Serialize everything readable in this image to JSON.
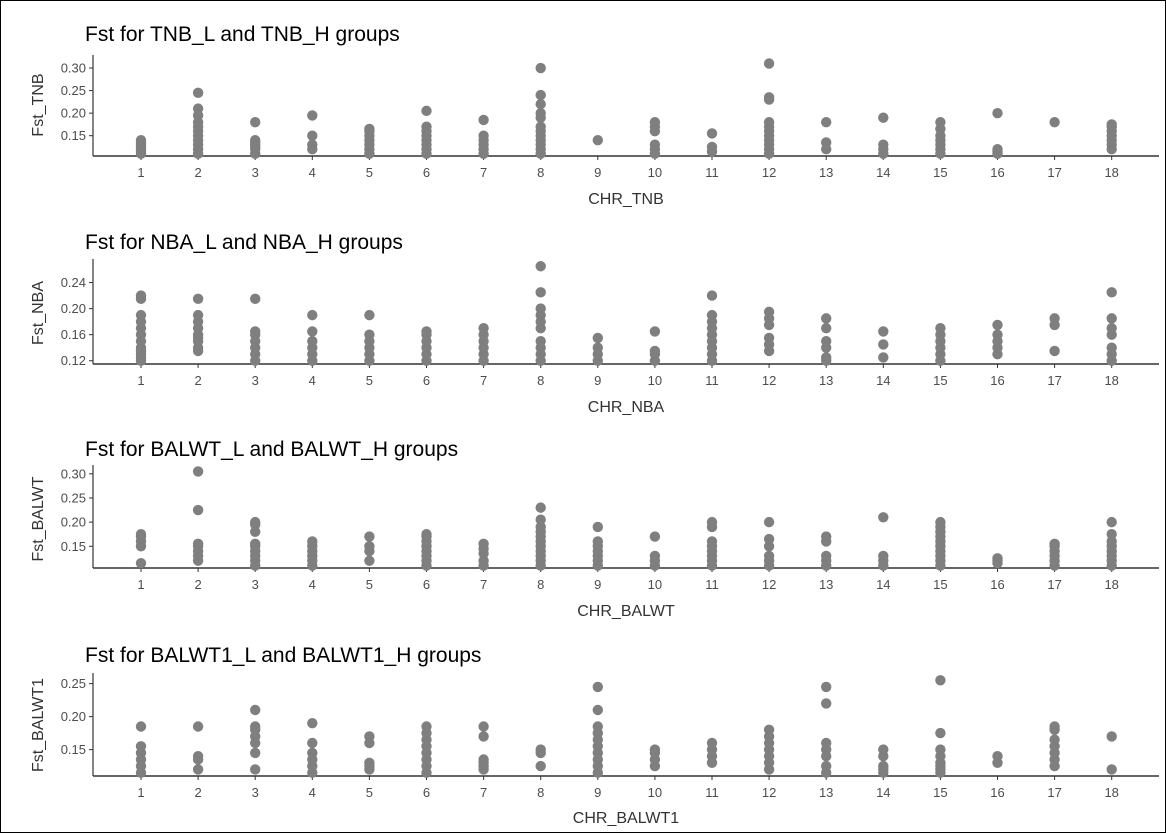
{
  "chart_data": [
    {
      "type": "scatter",
      "title": "Fst for TNB_L and TNB_H groups",
      "xlabel": "CHR_TNB",
      "ylabel": "Fst_TNB",
      "x_ticks": [
        "1",
        "2",
        "3",
        "4",
        "5",
        "6",
        "7",
        "8",
        "9",
        "10",
        "11",
        "12",
        "13",
        "14",
        "15",
        "16",
        "17",
        "18"
      ],
      "y_ticks": [
        "0.15",
        "0.20",
        "0.25",
        "0.30"
      ],
      "ylim": [
        0.105,
        0.32
      ],
      "grid": false,
      "point_color": "#7f7f7f",
      "points": [
        {
          "chr": 1,
          "values": [
            0.11,
            0.115,
            0.12,
            0.125,
            0.13,
            0.135,
            0.14
          ]
        },
        {
          "chr": 2,
          "values": [
            0.11,
            0.12,
            0.13,
            0.14,
            0.15,
            0.16,
            0.17,
            0.18,
            0.195,
            0.21,
            0.245
          ]
        },
        {
          "chr": 3,
          "values": [
            0.11,
            0.12,
            0.125,
            0.13,
            0.135,
            0.14,
            0.18
          ]
        },
        {
          "chr": 4,
          "values": [
            0.12,
            0.13,
            0.15,
            0.195
          ]
        },
        {
          "chr": 5,
          "values": [
            0.11,
            0.12,
            0.13,
            0.14,
            0.15,
            0.16,
            0.165
          ]
        },
        {
          "chr": 6,
          "values": [
            0.11,
            0.12,
            0.13,
            0.14,
            0.15,
            0.16,
            0.17,
            0.205
          ]
        },
        {
          "chr": 7,
          "values": [
            0.11,
            0.12,
            0.13,
            0.14,
            0.15,
            0.185
          ]
        },
        {
          "chr": 8,
          "values": [
            0.11,
            0.12,
            0.13,
            0.14,
            0.15,
            0.16,
            0.17,
            0.19,
            0.2,
            0.22,
            0.24,
            0.3
          ]
        },
        {
          "chr": 9,
          "values": [
            0.14
          ]
        },
        {
          "chr": 10,
          "values": [
            0.11,
            0.12,
            0.13,
            0.16,
            0.17,
            0.18
          ]
        },
        {
          "chr": 11,
          "values": [
            0.115,
            0.125,
            0.155
          ]
        },
        {
          "chr": 12,
          "values": [
            0.11,
            0.12,
            0.13,
            0.14,
            0.15,
            0.16,
            0.17,
            0.18,
            0.23,
            0.235,
            0.31
          ]
        },
        {
          "chr": 13,
          "values": [
            0.12,
            0.135,
            0.18
          ]
        },
        {
          "chr": 14,
          "values": [
            0.11,
            0.12,
            0.13,
            0.19
          ]
        },
        {
          "chr": 15,
          "values": [
            0.11,
            0.12,
            0.13,
            0.14,
            0.15,
            0.165,
            0.18
          ]
        },
        {
          "chr": 16,
          "values": [
            0.11,
            0.115,
            0.12,
            0.2
          ]
        },
        {
          "chr": 17,
          "values": [
            0.18
          ]
        },
        {
          "chr": 18,
          "values": [
            0.12,
            0.13,
            0.14,
            0.15,
            0.16,
            0.17,
            0.175
          ]
        }
      ]
    },
    {
      "type": "scatter",
      "title": "Fst for NBA_L and NBA_H groups",
      "xlabel": "CHR_NBA",
      "ylabel": "Fst_NBA",
      "x_ticks": [
        "1",
        "2",
        "3",
        "4",
        "5",
        "6",
        "7",
        "8",
        "9",
        "10",
        "11",
        "12",
        "13",
        "14",
        "15",
        "16",
        "17",
        "18"
      ],
      "y_ticks": [
        "0.12",
        "0.16",
        "0.20",
        "0.24"
      ],
      "ylim": [
        0.115,
        0.27
      ],
      "grid": false,
      "point_color": "#7f7f7f",
      "points": [
        {
          "chr": 1,
          "values": [
            0.12,
            0.125,
            0.13,
            0.135,
            0.14,
            0.15,
            0.16,
            0.17,
            0.18,
            0.19,
            0.215,
            0.22
          ]
        },
        {
          "chr": 2,
          "values": [
            0.135,
            0.14,
            0.15,
            0.155,
            0.16,
            0.17,
            0.18,
            0.19,
            0.215
          ]
        },
        {
          "chr": 3,
          "values": [
            0.12,
            0.13,
            0.14,
            0.15,
            0.16,
            0.165,
            0.215
          ]
        },
        {
          "chr": 4,
          "values": [
            0.12,
            0.13,
            0.14,
            0.15,
            0.165,
            0.19
          ]
        },
        {
          "chr": 5,
          "values": [
            0.12,
            0.13,
            0.14,
            0.15,
            0.16,
            0.19
          ]
        },
        {
          "chr": 6,
          "values": [
            0.12,
            0.13,
            0.14,
            0.15,
            0.16,
            0.165
          ]
        },
        {
          "chr": 7,
          "values": [
            0.12,
            0.13,
            0.14,
            0.15,
            0.16,
            0.17
          ]
        },
        {
          "chr": 8,
          "values": [
            0.12,
            0.13,
            0.14,
            0.15,
            0.17,
            0.18,
            0.19,
            0.2,
            0.225,
            0.265
          ]
        },
        {
          "chr": 9,
          "values": [
            0.12,
            0.13,
            0.14,
            0.155
          ]
        },
        {
          "chr": 10,
          "values": [
            0.12,
            0.13,
            0.135,
            0.165
          ]
        },
        {
          "chr": 11,
          "values": [
            0.12,
            0.13,
            0.14,
            0.15,
            0.16,
            0.17,
            0.18,
            0.19,
            0.22
          ]
        },
        {
          "chr": 12,
          "values": [
            0.135,
            0.145,
            0.155,
            0.175,
            0.185,
            0.195
          ]
        },
        {
          "chr": 13,
          "values": [
            0.12,
            0.125,
            0.14,
            0.15,
            0.17,
            0.185
          ]
        },
        {
          "chr": 14,
          "values": [
            0.125,
            0.145,
            0.165
          ]
        },
        {
          "chr": 15,
          "values": [
            0.12,
            0.13,
            0.14,
            0.15,
            0.16,
            0.17
          ]
        },
        {
          "chr": 16,
          "values": [
            0.13,
            0.14,
            0.15,
            0.16,
            0.175
          ]
        },
        {
          "chr": 17,
          "values": [
            0.135,
            0.175,
            0.185
          ]
        },
        {
          "chr": 18,
          "values": [
            0.12,
            0.13,
            0.14,
            0.16,
            0.17,
            0.185,
            0.225
          ]
        }
      ]
    },
    {
      "type": "scatter",
      "title": "Fst for BALWT_L and BALWT_H groups",
      "xlabel": "CHR_BALWT",
      "ylabel": "Fst_BALWT",
      "x_ticks": [
        "1",
        "2",
        "3",
        "4",
        "5",
        "6",
        "7",
        "8",
        "9",
        "10",
        "11",
        "12",
        "13",
        "14",
        "15",
        "16",
        "17",
        "18"
      ],
      "y_ticks": [
        "0.15",
        "0.20",
        "0.25",
        "0.30"
      ],
      "ylim": [
        0.105,
        0.31
      ],
      "grid": false,
      "point_color": "#7f7f7f",
      "points": [
        {
          "chr": 1,
          "values": [
            0.115,
            0.15,
            0.16,
            0.17,
            0.175
          ]
        },
        {
          "chr": 2,
          "values": [
            0.12,
            0.13,
            0.14,
            0.15,
            0.155,
            0.225,
            0.305
          ]
        },
        {
          "chr": 3,
          "values": [
            0.11,
            0.12,
            0.13,
            0.14,
            0.15,
            0.155,
            0.18,
            0.195,
            0.2
          ]
        },
        {
          "chr": 4,
          "values": [
            0.11,
            0.12,
            0.13,
            0.14,
            0.15,
            0.16
          ]
        },
        {
          "chr": 5,
          "values": [
            0.12,
            0.14,
            0.15,
            0.17
          ]
        },
        {
          "chr": 6,
          "values": [
            0.11,
            0.12,
            0.13,
            0.14,
            0.15,
            0.16,
            0.17,
            0.175
          ]
        },
        {
          "chr": 7,
          "values": [
            0.11,
            0.12,
            0.135,
            0.145,
            0.155
          ]
        },
        {
          "chr": 8,
          "values": [
            0.11,
            0.12,
            0.13,
            0.14,
            0.15,
            0.16,
            0.17,
            0.18,
            0.19,
            0.205,
            0.23
          ]
        },
        {
          "chr": 9,
          "values": [
            0.11,
            0.12,
            0.13,
            0.14,
            0.15,
            0.16,
            0.19
          ]
        },
        {
          "chr": 10,
          "values": [
            0.11,
            0.12,
            0.13,
            0.17
          ]
        },
        {
          "chr": 11,
          "values": [
            0.11,
            0.12,
            0.13,
            0.14,
            0.15,
            0.16,
            0.19,
            0.2
          ]
        },
        {
          "chr": 12,
          "values": [
            0.11,
            0.12,
            0.13,
            0.15,
            0.165,
            0.2
          ]
        },
        {
          "chr": 13,
          "values": [
            0.11,
            0.12,
            0.13,
            0.16,
            0.17
          ]
        },
        {
          "chr": 14,
          "values": [
            0.11,
            0.12,
            0.13,
            0.21
          ]
        },
        {
          "chr": 15,
          "values": [
            0.11,
            0.12,
            0.13,
            0.14,
            0.15,
            0.16,
            0.17,
            0.18,
            0.19,
            0.2
          ]
        },
        {
          "chr": 16,
          "values": [
            0.115,
            0.12,
            0.125
          ]
        },
        {
          "chr": 17,
          "values": [
            0.11,
            0.12,
            0.13,
            0.14,
            0.15,
            0.155
          ]
        },
        {
          "chr": 18,
          "values": [
            0.11,
            0.12,
            0.13,
            0.14,
            0.15,
            0.16,
            0.175,
            0.2
          ]
        }
      ]
    },
    {
      "type": "scatter",
      "title": "Fst for BALWT1_L and BALWT1_H groups",
      "xlabel": "CHR_BALWT1",
      "ylabel": "Fst_BALWT1",
      "x_ticks": [
        "1",
        "2",
        "3",
        "4",
        "5",
        "6",
        "7",
        "8",
        "9",
        "10",
        "11",
        "12",
        "13",
        "14",
        "15",
        "16",
        "17",
        "18"
      ],
      "y_ticks": [
        "0.15",
        "0.20",
        "0.25"
      ],
      "ylim": [
        0.11,
        0.26
      ],
      "grid": false,
      "point_color": "#7f7f7f",
      "points": [
        {
          "chr": 1,
          "values": [
            0.115,
            0.125,
            0.135,
            0.145,
            0.155,
            0.185
          ]
        },
        {
          "chr": 2,
          "values": [
            0.12,
            0.135,
            0.14,
            0.185
          ]
        },
        {
          "chr": 3,
          "values": [
            0.12,
            0.145,
            0.16,
            0.17,
            0.18,
            0.185,
            0.21
          ]
        },
        {
          "chr": 4,
          "values": [
            0.115,
            0.125,
            0.135,
            0.145,
            0.16,
            0.19
          ]
        },
        {
          "chr": 5,
          "values": [
            0.12,
            0.125,
            0.13,
            0.16,
            0.17
          ]
        },
        {
          "chr": 6,
          "values": [
            0.115,
            0.125,
            0.135,
            0.145,
            0.155,
            0.165,
            0.175,
            0.185
          ]
        },
        {
          "chr": 7,
          "values": [
            0.12,
            0.125,
            0.13,
            0.135,
            0.17,
            0.185
          ]
        },
        {
          "chr": 8,
          "values": [
            0.125,
            0.145,
            0.15
          ]
        },
        {
          "chr": 9,
          "values": [
            0.115,
            0.125,
            0.135,
            0.145,
            0.155,
            0.165,
            0.175,
            0.185,
            0.21,
            0.245
          ]
        },
        {
          "chr": 10,
          "values": [
            0.125,
            0.135,
            0.145,
            0.15
          ]
        },
        {
          "chr": 11,
          "values": [
            0.13,
            0.14,
            0.15,
            0.16
          ]
        },
        {
          "chr": 12,
          "values": [
            0.12,
            0.13,
            0.14,
            0.15,
            0.16,
            0.17,
            0.18
          ]
        },
        {
          "chr": 13,
          "values": [
            0.115,
            0.125,
            0.14,
            0.15,
            0.16,
            0.22,
            0.245
          ]
        },
        {
          "chr": 14,
          "values": [
            0.115,
            0.12,
            0.125,
            0.14,
            0.15
          ]
        },
        {
          "chr": 15,
          "values": [
            0.115,
            0.12,
            0.125,
            0.13,
            0.14,
            0.15,
            0.175,
            0.255
          ]
        },
        {
          "chr": 16,
          "values": [
            0.13,
            0.14
          ]
        },
        {
          "chr": 17,
          "values": [
            0.125,
            0.135,
            0.145,
            0.155,
            0.165,
            0.18,
            0.185
          ]
        },
        {
          "chr": 18,
          "values": [
            0.12,
            0.17
          ]
        }
      ]
    }
  ]
}
